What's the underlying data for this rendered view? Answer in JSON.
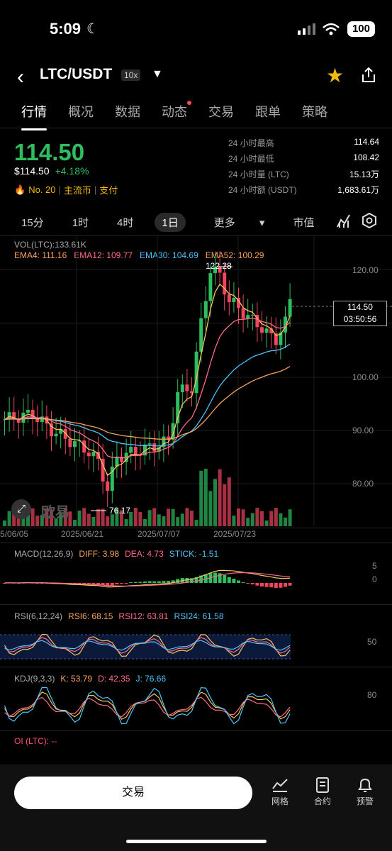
{
  "status": {
    "time": "5:09",
    "battery": "100"
  },
  "header": {
    "pair": "LTC/USDT",
    "leverage": "10x"
  },
  "tabs": [
    {
      "label": "行情"
    },
    {
      "label": "概况"
    },
    {
      "label": "数据"
    },
    {
      "label": "动态"
    },
    {
      "label": "交易"
    },
    {
      "label": "跟单"
    },
    {
      "label": "策略"
    }
  ],
  "ticker": {
    "price": "114.50",
    "price_usd": "$114.50",
    "change": "+4.18%",
    "rank": "No. 20",
    "tag1": "主流币",
    "tag2": "支付",
    "stats": [
      {
        "label": "24 小时最高",
        "value": "114.64"
      },
      {
        "label": "24 小时最低",
        "value": "108.42"
      },
      {
        "label": "24 小时量 (LTC)",
        "value": "15.13万"
      },
      {
        "label": "24 小时额 (USDT)",
        "value": "1,683.61万"
      }
    ]
  },
  "intervals": [
    "15分",
    "1时",
    "4时",
    "1日",
    "更多",
    "市值"
  ],
  "main_chart": {
    "vol_label": "VOL(LTC):133.61K",
    "ema": [
      {
        "label": "EMA4: 111.16",
        "color": "#f7a35c"
      },
      {
        "label": "EMA12: 109.77",
        "color": "#ff6b8a"
      },
      {
        "label": "EMA30: 104.69",
        "color": "#4fc3f7"
      },
      {
        "label": "EMA52: 100.29",
        "color": "#f7a35c"
      }
    ],
    "high_marker": "122.28",
    "low_marker": "76.17",
    "current_price": "114.50",
    "countdown": "03:50:56",
    "y_ticks": [
      "120.00",
      "100.00",
      "90.00",
      "80.00"
    ],
    "x_ticks": [
      "5/06/05",
      "2025/06/21",
      "2025/07/07",
      "2025/07/23"
    ],
    "watermark": "欧易"
  },
  "macd": {
    "title": "MACD(12,26,9)",
    "diff": "DIFF: 3.98",
    "dea": "DEA: 4.73",
    "stick": "STICK: -1.51",
    "ticks": [
      "5",
      "0"
    ]
  },
  "rsi": {
    "title": "RSI(6,12,24)",
    "rsi6": "RSI6: 68.15",
    "rsi12": "RSI12: 63.81",
    "rsi24": "RSI24: 61.58",
    "tick": "50"
  },
  "kdj": {
    "title": "KDJ(9,3,3)",
    "k": "K: 53.79",
    "d": "D: 42.35",
    "j": "J: 76.66",
    "tick": "80"
  },
  "oi": {
    "label": "OI (LTC): --"
  },
  "bottom": {
    "trade": "交易",
    "grid": "网格",
    "contract": "合约",
    "alert": "预警"
  }
}
